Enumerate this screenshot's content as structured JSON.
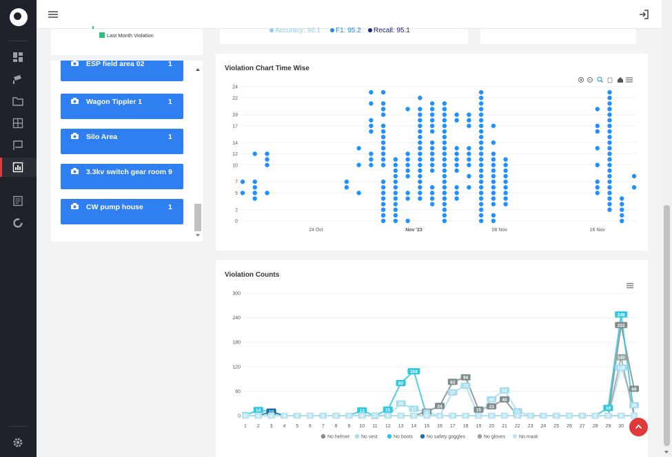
{
  "summary": {
    "legend_last_month": "Last Month Violation",
    "metrics": [
      {
        "label": "Accuracy: 96.1",
        "color": "#90cdf0"
      },
      {
        "label": "F1: 95.2",
        "color": "#1e88e5"
      },
      {
        "label": "Recall: 95.1",
        "color": "#1a237e"
      }
    ]
  },
  "cameras": [
    {
      "label": "ESP field area 02",
      "count": "1"
    },
    {
      "label": "Wagon Tippler 1",
      "count": "1"
    },
    {
      "label": "Silo Area",
      "count": "1"
    },
    {
      "label": "3.3kv switch gear room",
      "count": "9"
    },
    {
      "label": "CW pump house",
      "count": "1"
    }
  ],
  "scatter_title": "Violation Chart Time Wise",
  "counts_title": "Violation Counts",
  "chart_data": [
    {
      "type": "scatter",
      "title": "Violation Chart Time Wise",
      "y_ticks": [
        "24",
        "22",
        "19",
        "17",
        "14",
        "12",
        "10",
        "7",
        "5",
        "2",
        "0"
      ],
      "ylim": [
        0,
        24
      ],
      "x_ticks": [
        "24 Oct",
        "Nov '23",
        "08 Nov",
        "16 Nov"
      ],
      "x_tick_days": [
        24,
        32,
        39,
        47
      ],
      "xlim": [
        18,
        49
      ],
      "columns": [
        {
          "day": 18.0,
          "hours": [
            5,
            7
          ]
        },
        {
          "day": 19.0,
          "hours": [
            4,
            5,
            6,
            7,
            12
          ]
        },
        {
          "day": 20.0,
          "hours": [
            5,
            10,
            11,
            12
          ]
        },
        {
          "day": 26.5,
          "hours": [
            6,
            7
          ]
        },
        {
          "day": 27.5,
          "hours": [
            5,
            10,
            13
          ]
        },
        {
          "day": 28.5,
          "hours": [
            10,
            11,
            12,
            16,
            17,
            18,
            21,
            23
          ]
        },
        {
          "day": 29.5,
          "hours": [
            0,
            1,
            2,
            3,
            4,
            5,
            6,
            7,
            10,
            11,
            12,
            13,
            14,
            15,
            16,
            17,
            19,
            20,
            21,
            23
          ]
        },
        {
          "day": 30.5,
          "hours": [
            0,
            1,
            2,
            3,
            4,
            5,
            6,
            7,
            8,
            9,
            10,
            11
          ]
        },
        {
          "day": 31.5,
          "hours": [
            0,
            4,
            5,
            8,
            9,
            10,
            11,
            12,
            20
          ]
        },
        {
          "day": 32.5,
          "hours": [
            4,
            5,
            6,
            7,
            8,
            9,
            10,
            11,
            12,
            13,
            14,
            15,
            16,
            17,
            18,
            19,
            20,
            22
          ]
        },
        {
          "day": 33.5,
          "hours": [
            3,
            4,
            5,
            6,
            9,
            10,
            11,
            12,
            13,
            14,
            16,
            17,
            18,
            19,
            20,
            21
          ]
        },
        {
          "day": 34.5,
          "hours": [
            0,
            1,
            2,
            3,
            4,
            5,
            6,
            7,
            8,
            9,
            10,
            11,
            12,
            13,
            14,
            15,
            16,
            17,
            18,
            19,
            20,
            21
          ]
        },
        {
          "day": 35.5,
          "hours": [
            4,
            5,
            6,
            9,
            10,
            11,
            12,
            13,
            18,
            19
          ]
        },
        {
          "day": 36.5,
          "hours": [
            6,
            8,
            10,
            11,
            12,
            13,
            17,
            18,
            19
          ]
        },
        {
          "day": 37.5,
          "hours": [
            0,
            1,
            2,
            3,
            4,
            5,
            6,
            7,
            8,
            9,
            10,
            11,
            12,
            13,
            14,
            15,
            16,
            17,
            18,
            19,
            20,
            21,
            22,
            23
          ]
        },
        {
          "day": 38.5,
          "hours": [
            0,
            1,
            3,
            4,
            5,
            6,
            7,
            8,
            9,
            10,
            11,
            12,
            14,
            17
          ]
        },
        {
          "day": 39.5,
          "hours": [
            3,
            4,
            5,
            6,
            7,
            8,
            9,
            10,
            11
          ]
        },
        {
          "day": 47.0,
          "hours": [
            5,
            6,
            7,
            10,
            13,
            16,
            17,
            20
          ]
        },
        {
          "day": 48.0,
          "hours": [
            2,
            3,
            4,
            5,
            6,
            7,
            8,
            9,
            10,
            11,
            12,
            13,
            14,
            15,
            16,
            17,
            18,
            19,
            20,
            21,
            22,
            23
          ]
        },
        {
          "day": 49.0,
          "hours": [
            0,
            1,
            2,
            3,
            4
          ]
        },
        {
          "day": 50.0,
          "hours": [
            6,
            8
          ]
        }
      ]
    },
    {
      "type": "line",
      "title": "Violation Counts",
      "categories": [
        "1",
        "2",
        "3",
        "4",
        "5",
        "6",
        "7",
        "8",
        "9",
        "10",
        "11",
        "12",
        "13",
        "14",
        "15",
        "16",
        "17",
        "18",
        "19",
        "20",
        "21",
        "22",
        "23",
        "24",
        "25",
        "26",
        "27",
        "28",
        "29",
        "30",
        "31"
      ],
      "y_ticks": [
        0,
        60,
        120,
        180,
        240,
        300
      ],
      "ylim": [
        0,
        300
      ],
      "series": [
        {
          "name": "No helmet",
          "color": "#7f8c8d",
          "values": [
            0,
            0,
            0,
            0,
            0,
            0,
            0,
            0,
            0,
            0,
            0,
            0,
            0,
            0,
            10,
            24,
            83,
            94,
            15,
            23,
            40,
            0,
            0,
            0,
            0,
            0,
            0,
            0,
            0,
            222,
            66
          ]
        },
        {
          "name": "No vest",
          "color": "#a6dcef",
          "values": [
            0,
            0,
            0,
            0,
            0,
            0,
            0,
            0,
            0,
            0,
            0,
            0,
            30,
            17,
            8,
            0,
            57,
            73,
            0,
            40,
            62,
            11,
            0,
            0,
            0,
            0,
            0,
            0,
            0,
            118,
            26
          ]
        },
        {
          "name": "No boots",
          "color": "#2cc7e0",
          "values": [
            1,
            14,
            10,
            0,
            0,
            0,
            0,
            0,
            0,
            13,
            0,
            15,
            80,
            109,
            0,
            0,
            0,
            0,
            0,
            0,
            0,
            0,
            0,
            0,
            0,
            0,
            0,
            0,
            19,
            248,
            0
          ]
        },
        {
          "name": "No safety goggles",
          "color": "#1a6fa8",
          "values": [
            0,
            0,
            10,
            0,
            0,
            0,
            0,
            0,
            0,
            0,
            0,
            0,
            0,
            0,
            0,
            0,
            0,
            0,
            0,
            0,
            0,
            0,
            0,
            0,
            0,
            0,
            0,
            0,
            0,
            0,
            0
          ]
        },
        {
          "name": "No gloves",
          "color": "#95a5a6",
          "values": [
            0,
            0,
            0,
            0,
            0,
            0,
            0,
            0,
            0,
            0,
            0,
            0,
            0,
            0,
            0,
            0,
            0,
            0,
            0,
            0,
            0,
            0,
            0,
            0,
            0,
            0,
            0,
            0,
            0,
            143,
            0
          ]
        },
        {
          "name": "No mask",
          "color": "#b8e6f5",
          "values": [
            0,
            0,
            0,
            0,
            0,
            0,
            0,
            0,
            0,
            0,
            1,
            0,
            0,
            0,
            0,
            0,
            0,
            0,
            0,
            0,
            0,
            0,
            0,
            0,
            0,
            0,
            0,
            0,
            0,
            0,
            0
          ]
        }
      ]
    }
  ]
}
